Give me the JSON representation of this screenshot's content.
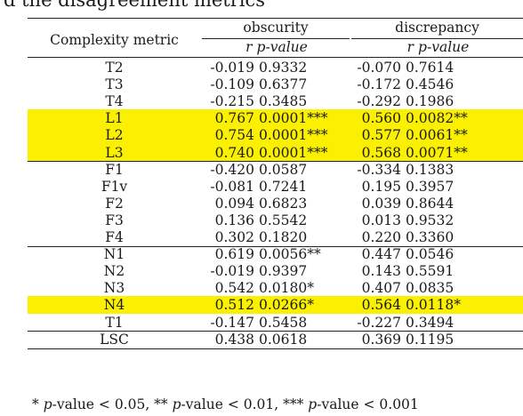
{
  "caption": "d the disagreement metrics",
  "header": {
    "row_label": "Complexity metric",
    "group1": "obscurity",
    "group2": "discrepancy",
    "r": "r",
    "p_value": "p-value"
  },
  "rows": [
    {
      "metric": "T2",
      "obs_r": "-0.019",
      "obs_p": "0.9332",
      "dis_r": "-0.070",
      "dis_p": "0.7614",
      "highlight": false
    },
    {
      "metric": "T3",
      "obs_r": "-0.109",
      "obs_p": "0.6377",
      "dis_r": "-0.172",
      "dis_p": "0.4546",
      "highlight": false
    },
    {
      "metric": "T4",
      "obs_r": "-0.215",
      "obs_p": "0.3485",
      "dis_r": "-0.292",
      "dis_p": "0.1986",
      "highlight": false
    },
    {
      "metric": "L1",
      "obs_r": "0.767",
      "obs_p": "0.0001***",
      "dis_r": "0.560",
      "dis_p": "0.0082**",
      "highlight": true
    },
    {
      "metric": "L2",
      "obs_r": "0.754",
      "obs_p": "0.0001***",
      "dis_r": "0.577",
      "dis_p": "0.0061**",
      "highlight": true
    },
    {
      "metric": "L3",
      "obs_r": "0.740",
      "obs_p": "0.0001***",
      "dis_r": "0.568",
      "dis_p": "0.0071**",
      "highlight": true
    },
    {
      "metric": "F1",
      "obs_r": "-0.420",
      "obs_p": "0.0587",
      "dis_r": "-0.334",
      "dis_p": "0.1383",
      "highlight": false
    },
    {
      "metric": "F1v",
      "obs_r": "-0.081",
      "obs_p": "0.7241",
      "dis_r": "0.195",
      "dis_p": "0.3957",
      "highlight": false
    },
    {
      "metric": "F2",
      "obs_r": "0.094",
      "obs_p": "0.6823",
      "dis_r": "0.039",
      "dis_p": "0.8644",
      "highlight": false
    },
    {
      "metric": "F3",
      "obs_r": "0.136",
      "obs_p": "0.5542",
      "dis_r": "0.013",
      "dis_p": "0.9532",
      "highlight": false
    },
    {
      "metric": "F4",
      "obs_r": "0.302",
      "obs_p": "0.1820",
      "dis_r": "0.220",
      "dis_p": "0.3360",
      "highlight": false
    },
    {
      "metric": "N1",
      "obs_r": "0.619",
      "obs_p": "0.0056**",
      "dis_r": "0.447",
      "dis_p": "0.0546",
      "highlight": false
    },
    {
      "metric": "N2",
      "obs_r": "-0.019",
      "obs_p": "0.9397",
      "dis_r": "0.143",
      "dis_p": "0.5591",
      "highlight": false
    },
    {
      "metric": "N3",
      "obs_r": "0.542",
      "obs_p": "0.0180*",
      "dis_r": "0.407",
      "dis_p": "0.0835",
      "highlight": false
    },
    {
      "metric": "N4",
      "obs_r": "0.512",
      "obs_p": "0.0266*",
      "dis_r": "0.564",
      "dis_p": "0.0118*",
      "highlight": true
    },
    {
      "metric": "T1",
      "obs_r": "-0.147",
      "obs_p": "0.5458",
      "dis_r": "-0.227",
      "dis_p": "0.3494",
      "highlight": false
    },
    {
      "metric": "LSC",
      "obs_r": "0.438",
      "obs_p": "0.0618",
      "dis_r": "0.369",
      "dis_p": "0.1195",
      "highlight": false
    }
  ],
  "footnote": {
    "parts": [
      "* ",
      "p",
      "-value < 0.05, ** ",
      "p",
      "-value < 0.01, *** ",
      "p",
      "-value < 0.001"
    ]
  },
  "colors": {
    "highlight": "#fbf000",
    "text": "#1a1a1a",
    "rule": "#222222"
  }
}
